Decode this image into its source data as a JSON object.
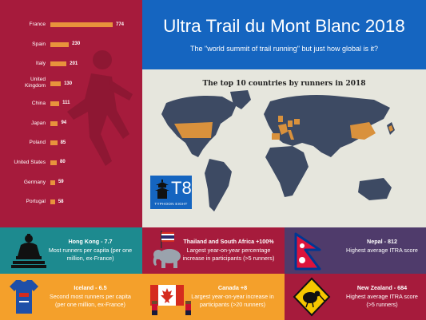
{
  "header": {
    "title": "Ultra Trail du Mont Blanc 2018",
    "subtitle": "The \"world summit of trail running\" but just how global is it?"
  },
  "map": {
    "title": "The top 10 countries by runners in 2018"
  },
  "logo": {
    "mark": "T8",
    "text": "TYPHOON EIGHT"
  },
  "chart_data": {
    "type": "bar",
    "orientation": "horizontal",
    "categories": [
      "France",
      "Spain",
      "Italy",
      "United Kingdom",
      "China",
      "Japan",
      "Poland",
      "United States",
      "Germany",
      "Portugal"
    ],
    "values": [
      774,
      230,
      201,
      130,
      111,
      94,
      85,
      80,
      59,
      58
    ]
  },
  "panels": {
    "hongkong": {
      "title": "Hong Kong - 7.7",
      "text": "Most runners per capita (per one million, ex-France)"
    },
    "thailand": {
      "title": "Thailand and South Africa +100%",
      "text": "Largest year-on-year percentage increase in participants (>5 runners)"
    },
    "nepal": {
      "title": "Nepal - 812",
      "text": "Highest average ITRA score"
    },
    "iceland": {
      "title": "Iceland - 6.5",
      "text": "Second most runners per capita (per one million, ex-France)"
    },
    "canada": {
      "title": "Canada +8",
      "text": "Largest year-on-year increase in participants (>20 runners)"
    },
    "newzealand": {
      "title": "New Zealand - 684",
      "text": "Highest average ITRA score (>5 runners)"
    }
  },
  "colors": {
    "crimson": "#a61b3c",
    "bar": "#e8933c",
    "blue": "#1565c0",
    "teal": "#1d8a8f",
    "plum": "#4f3b6b",
    "orange": "#f4a02b",
    "map_land": "#3d4a63",
    "map_highlight": "#d9913c"
  }
}
